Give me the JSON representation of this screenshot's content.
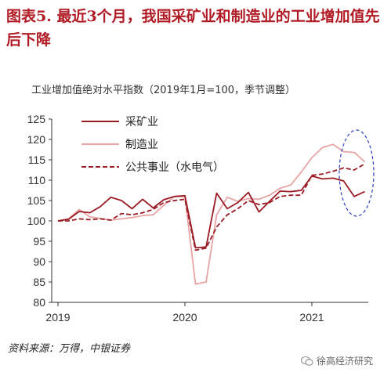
{
  "figure": {
    "title": "图表5. 最近3个月，我国采矿业和制造业的工业增加值先后下降",
    "subtitle": "工业增加值绝对水平指数（2019年1月=100，季节调整）",
    "source": "资料来源：万得，中银证券",
    "watermark": "徐高经济研究"
  },
  "chart_data": {
    "type": "line",
    "title": "",
    "ylabel": "",
    "xlabel": "",
    "ylim": [
      80,
      125
    ],
    "yticks": [
      80,
      85,
      90,
      95,
      100,
      105,
      110,
      115,
      120,
      125
    ],
    "xticks": [
      "2019",
      "2020",
      "2021"
    ],
    "x": [
      "2019-01",
      "2019-02",
      "2019-03",
      "2019-04",
      "2019-05",
      "2019-06",
      "2019-07",
      "2019-08",
      "2019-09",
      "2019-10",
      "2019-11",
      "2019-12",
      "2020-01",
      "2020-02",
      "2020-03",
      "2020-04",
      "2020-05",
      "2020-06",
      "2020-07",
      "2020-08",
      "2020-09",
      "2020-10",
      "2020-11",
      "2020-12",
      "2021-01",
      "2021-02",
      "2021-03",
      "2021-04",
      "2021-05",
      "2021-06"
    ],
    "legend_position": "top-left",
    "grid": false,
    "series": [
      {
        "name": "采矿业",
        "color": "#9b1b24",
        "dash": "solid",
        "values": [
          100.0,
          100.4,
          102.3,
          102.0,
          103.5,
          105.8,
          105.0,
          103.0,
          105.3,
          103.2,
          105.2,
          106.0,
          106.2,
          93.4,
          93.6,
          106.8,
          103.0,
          104.5,
          107.0,
          102.2,
          104.8,
          107.3,
          107.2,
          107.5,
          111.0,
          110.3,
          110.5,
          109.8,
          106.0,
          107.2
        ]
      },
      {
        "name": "制造业",
        "color": "#e8a4a4",
        "dash": "solid",
        "values": [
          100.0,
          100.5,
          102.8,
          101.0,
          100.6,
          100.2,
          100.5,
          100.8,
          101.3,
          101.5,
          103.8,
          106.0,
          106.0,
          84.5,
          85.0,
          101.5,
          105.8,
          104.8,
          105.5,
          105.3,
          106.3,
          108.0,
          108.8,
          112.0,
          115.5,
          118.0,
          118.8,
          117.0,
          116.8,
          114.5
        ]
      },
      {
        "name": "公共事业（水电气）",
        "color": "#9b1b24",
        "dash": "dashed",
        "values": [
          100.0,
          100.0,
          100.5,
          100.3,
          100.5,
          100.2,
          101.8,
          101.5,
          102.0,
          102.8,
          104.5,
          105.0,
          105.3,
          92.8,
          93.3,
          98.5,
          101.5,
          103.0,
          105.0,
          104.0,
          104.5,
          106.0,
          106.3,
          106.3,
          111.2,
          111.5,
          112.2,
          113.0,
          112.5,
          114.0
        ]
      }
    ]
  }
}
